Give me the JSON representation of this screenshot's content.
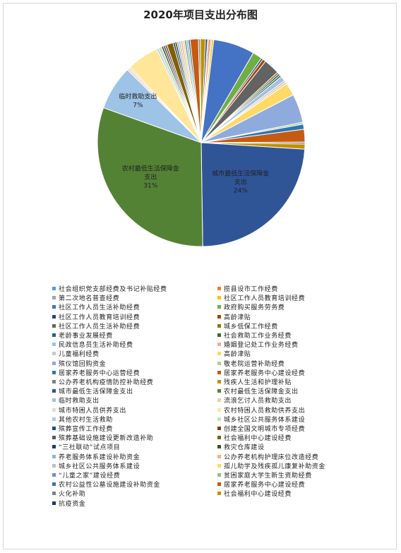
{
  "chart_data": {
    "type": "pie",
    "title": "2020年项目支出分布图",
    "slices": [
      {
        "name": "社会组织党支部经费及书记补贴经费",
        "value": 0.2,
        "color": "#5b9bd5"
      },
      {
        "name": "揽县设市工作经费",
        "value": 0.3,
        "color": "#ed7d31"
      },
      {
        "name": "第二次地名普查经费",
        "value": 0.2,
        "color": "#a5a5a5"
      },
      {
        "name": "社区工作人员教育培训经费",
        "value": 0.3,
        "color": "#ffc000"
      },
      {
        "name": "社区工作人员生活补助经费",
        "value": 6.5,
        "color": "#4472c4"
      },
      {
        "name": "政府购买服务劳务费",
        "value": 1.5,
        "color": "#70ad47"
      },
      {
        "name": "社区工作人员教育培训经费",
        "value": 0.3,
        "color": "#264478"
      },
      {
        "name": "高龄津贴",
        "value": 0.5,
        "color": "#9e480e"
      },
      {
        "name": "社区工作人员生活补助经费",
        "value": 2.5,
        "color": "#636363"
      },
      {
        "name": "城乡低保工作经费",
        "value": 0.3,
        "color": "#997300"
      },
      {
        "name": "老龄事业发展经费",
        "value": 0.3,
        "color": "#255e91"
      },
      {
        "name": "社会救助工作业务经费",
        "value": 0.3,
        "color": "#43682b"
      },
      {
        "name": "民政信息员生活补助经费",
        "value": 0.8,
        "color": "#9dc3e6"
      },
      {
        "name": "婚姻登记处工作业务经费",
        "value": 0.3,
        "color": "#f4b183"
      },
      {
        "name": "儿童福利经费",
        "value": 0.3,
        "color": "#c9c9c9"
      },
      {
        "name": "高龄津贴",
        "value": 2.0,
        "color": "#ffd966"
      },
      {
        "name": "殡仪馆回购资金",
        "value": 4.5,
        "color": "#8faadc"
      },
      {
        "name": "敬老院运营补助经费",
        "value": 0.3,
        "color": "#a9d18e"
      },
      {
        "name": "居家养老服务中心运营经费",
        "value": 0.8,
        "color": "#2e75b6"
      },
      {
        "name": "居家养老服务中心建设经费",
        "value": 2.0,
        "color": "#c55a11"
      },
      {
        "name": "公办养老机构疫情防控补助经费",
        "value": 0.3,
        "color": "#7f7f7f"
      },
      {
        "name": "残疾人生活和护理补贴",
        "value": 0.8,
        "color": "#bf9000"
      },
      {
        "name": "城市最低生活保障金支出",
        "value": 24,
        "color": "#2f5597"
      },
      {
        "name": "农村最低生活保障金支出",
        "value": 31,
        "color": "#548235"
      },
      {
        "name": "临时救助支出",
        "value": 7,
        "color": "#9dc3e6"
      },
      {
        "name": "流浪乞讨人员救助支出",
        "value": 0.3,
        "color": "#f8cbad"
      },
      {
        "name": "城市特困人员供养支出",
        "value": 0.3,
        "color": "#dbdbdb"
      },
      {
        "name": "农村特困人员救助供养支出",
        "value": 5,
        "color": "#ffe699"
      },
      {
        "name": "其他农村生活救助",
        "value": 0.3,
        "color": "#b4c7e7"
      },
      {
        "name": "城乡社区公共服务体系建设",
        "value": 0.5,
        "color": "#c5e0b4"
      },
      {
        "name": "殡葬宣传工作经费",
        "value": 0.3,
        "color": "#1f4e79"
      },
      {
        "name": "创建全国文明城市专项经费",
        "value": 0.3,
        "color": "#833c0b"
      },
      {
        "name": "殡葬基础设施建设更新改造补助",
        "value": 0.3,
        "color": "#595959"
      },
      {
        "name": "社会福利中心建设经费",
        "value": 1.0,
        "color": "#7f6000"
      },
      {
        "name": "“三社联动”试点项目",
        "value": 0.3,
        "color": "#203864"
      },
      {
        "name": "救灾仓库建设",
        "value": 0.3,
        "color": "#375623"
      },
      {
        "name": "养老服务体系建设补助资金",
        "value": 0.3,
        "color": "#8eb4e3"
      },
      {
        "name": "公办养老机构护理床位改造经费",
        "value": 0.3,
        "color": "#f4b183"
      },
      {
        "name": "城乡社区公共服务体系建设",
        "value": 0.3,
        "color": "#bfbfbf"
      },
      {
        "name": "孤儿助学及残疾孤儿康复补助资金",
        "value": 0.3,
        "color": "#ffd966"
      },
      {
        "name": "“儿童之家”建设经费",
        "value": 0.3,
        "color": "#6f8fc9"
      },
      {
        "name": "贫困家庭大学生新生资助经费",
        "value": 0.3,
        "color": "#93c47d"
      },
      {
        "name": "农村公益性公墓设施建设补助资金",
        "value": 0.3,
        "color": "#2e75b6"
      },
      {
        "name": "居家养老服务中心建设经费",
        "value": 1.3,
        "color": "#c55a11"
      },
      {
        "name": "火化补助",
        "value": 0.3,
        "color": "#808080"
      },
      {
        "name": "社会福利中心建设经费",
        "value": 0.8,
        "color": "#bf9000"
      },
      {
        "name": "抗疫资金",
        "value": 0.3,
        "color": "#1f3864"
      }
    ],
    "labels": [
      {
        "name": "城市最低生活保障金\n支出",
        "pct": "24%"
      },
      {
        "name": "农村最低生活保障金\n支出",
        "pct": "31%"
      },
      {
        "name": "临时救助支出",
        "pct": "7%"
      }
    ],
    "legend_position": "bottom"
  }
}
